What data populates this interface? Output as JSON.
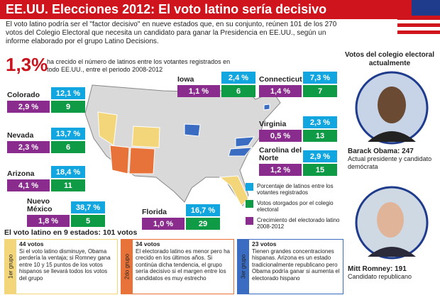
{
  "header": {
    "title": "EE.UU. Elecciones 2012: El voto latino sería decisivo"
  },
  "intro": "El voto latino podría ser el \"factor decisivo\" en nueve estados que, en su conjunto, reúnen 101 de los 270 votos del Colegio Electoral que necesita un candidato para ganar la Presidencia en EE.UU., según un informe elaborado por el grupo Latino Decisions.",
  "highlight": {
    "value": "1,3%",
    "text": "ha crecido el número de latinos entre los votantes registrados en todo EE.UU., entre el periodo 2008-2012"
  },
  "states": [
    {
      "name": "Colorado",
      "latino_share": "12,1 %",
      "electoral_votes": "9",
      "growth": "2,9 %"
    },
    {
      "name": "Nevada",
      "latino_share": "13,7 %",
      "electoral_votes": "6",
      "growth": "2,3 %"
    },
    {
      "name": "Arizona",
      "latino_share": "18,4 %",
      "electoral_votes": "11",
      "growth": "4,1 %"
    },
    {
      "name": "Nuevo México",
      "latino_share": "38,7 %",
      "electoral_votes": "5",
      "growth": "1,8 %"
    },
    {
      "name": "Florida",
      "latino_share": "16,7 %",
      "electoral_votes": "29",
      "growth": "1,0 %"
    },
    {
      "name": "Iowa",
      "latino_share": "2,4 %",
      "electoral_votes": "6",
      "growth": "1,1 %"
    },
    {
      "name": "Connecticut",
      "latino_share": "7,3 %",
      "electoral_votes": "7",
      "growth": "1,4 %"
    },
    {
      "name": "Virginia",
      "latino_share": "2,3 %",
      "electoral_votes": "13",
      "growth": "0,5 %"
    },
    {
      "name": "Carolina del Norte",
      "latino_share": "2,9 %",
      "electoral_votes": "15",
      "growth": "1,2 %"
    }
  ],
  "legend": [
    {
      "label": "Porcentaje de latinos entre los votantes registrados",
      "color": "#12a6e0"
    },
    {
      "label": "Votos otorgados por el colegio electoral",
      "color": "#0f9a46"
    },
    {
      "label": "Crecimiento del electorado latino 2008-2012",
      "color": "#8a2c8e"
    }
  ],
  "groups_title": "El voto latino en 9 estados: 101 votos",
  "groups": [
    {
      "label": "1er grupo",
      "votes": "44 votos",
      "text": "Si el voto latino disminuye, Obama perdería la ventaja; si Romney gana entre 10 y 15 puntos de los votos hispanos se llevará todos los votos del grupo",
      "color": "#f3d67a"
    },
    {
      "label": "2do grupo",
      "votes": "34 votos",
      "text": "El electorado latino es menor pero ha crecido en los últimos años. Si continúa dicha tendencia, el grupo sería decisivo si el margen entre los candidatos es muy estrecho",
      "color": "#e8733a"
    },
    {
      "label": "3er grupo",
      "votes": "23 votos",
      "text": "Tienen grandes concentraciones hispanas. Arizona es un estado tradicionalmente republicano pero Obama podría ganar si aumenta el electorado hispano",
      "color": "#3a6cc2"
    }
  ],
  "candidates_title": "Votos del colegio electoral actualmente",
  "candidates": [
    {
      "name": "Barack Obama: 247",
      "description": "Actual presidente y candidato demócrata"
    },
    {
      "name": "Mitt Romney: 191",
      "description": "Candidato republicano"
    }
  ]
}
